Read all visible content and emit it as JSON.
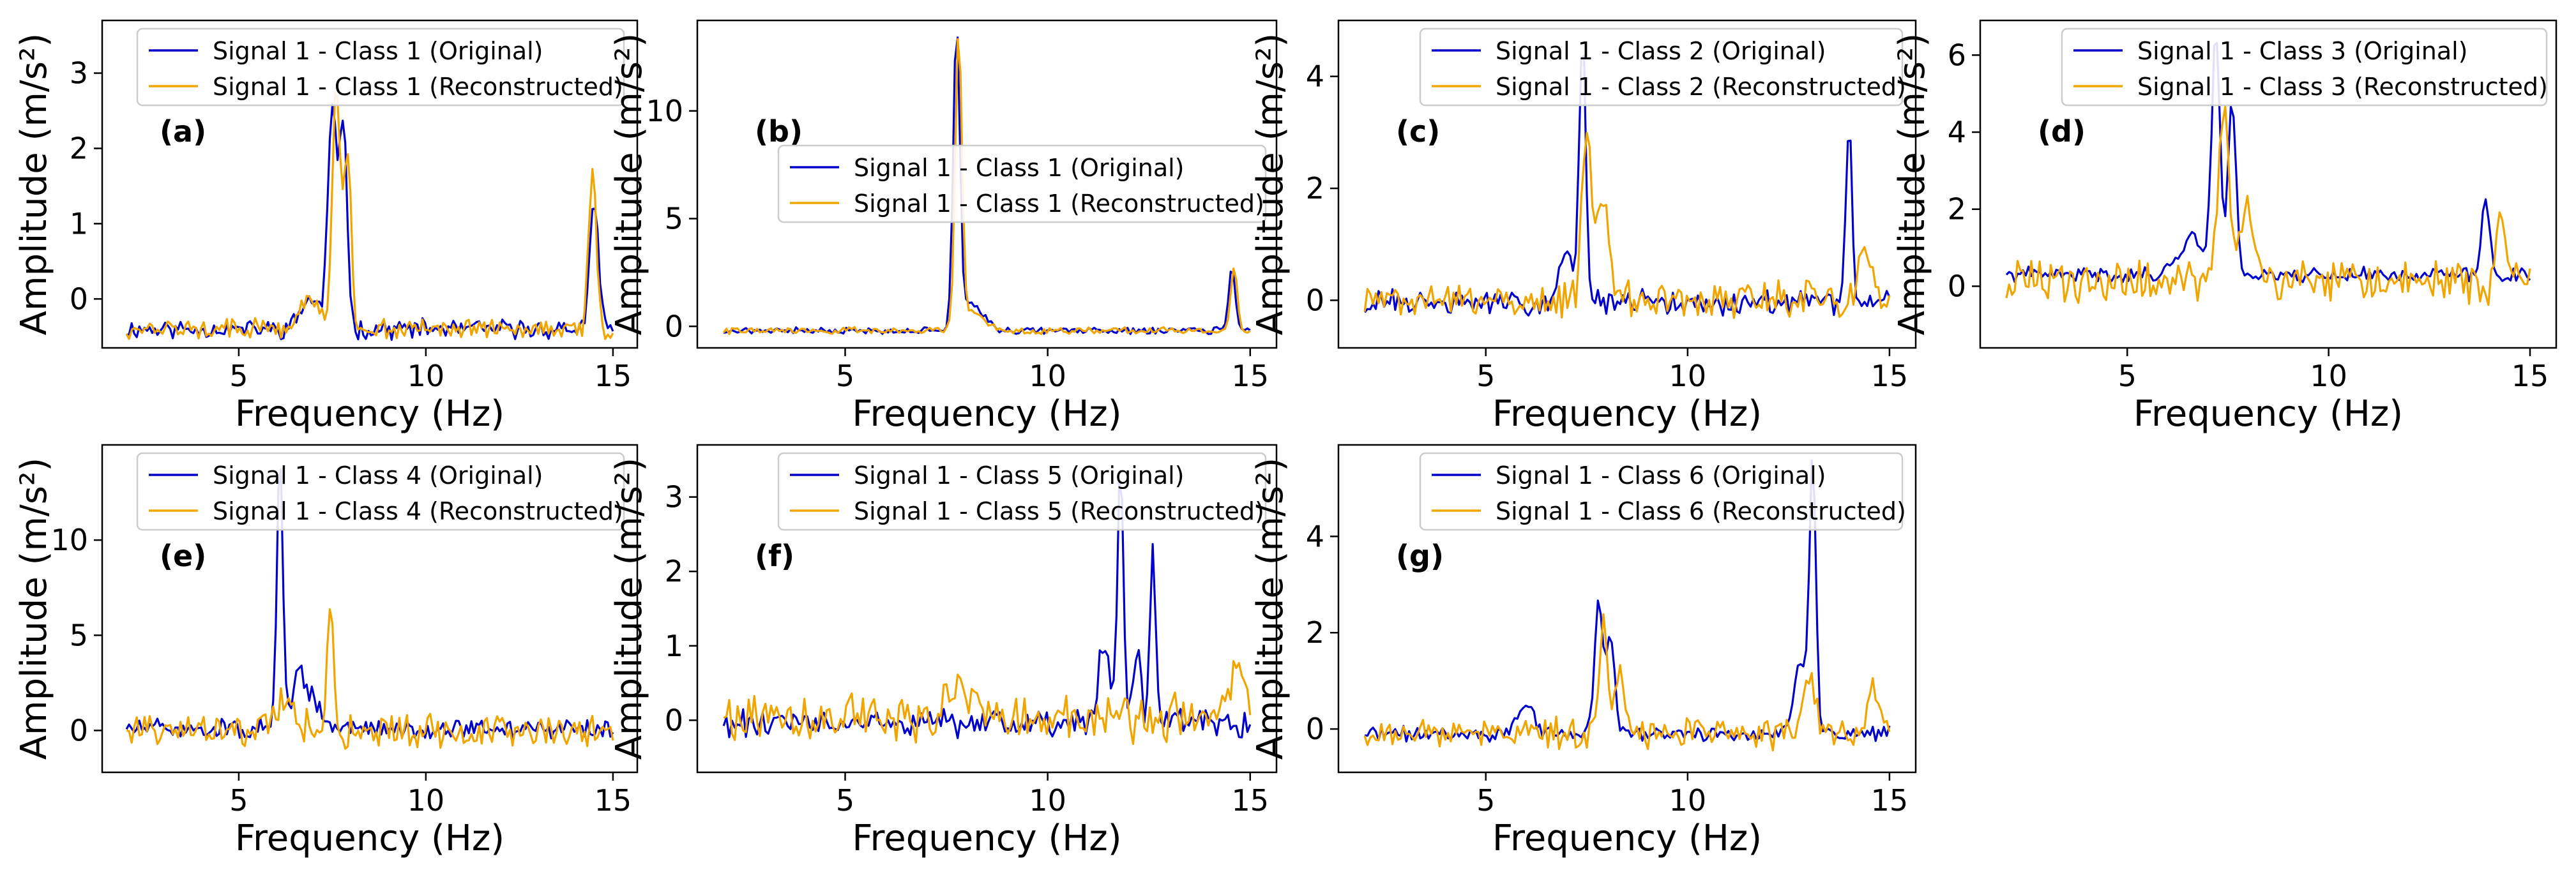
{
  "figure": {
    "colors": {
      "original": "#0000cc",
      "reconstructed": "#f0a500",
      "axis": "#000000",
      "legend_border": "#cccccc"
    },
    "x_domain": [
      2,
      15
    ]
  },
  "chart_data": [
    {
      "type": "line",
      "panel_label": "(a)",
      "xlabel": "Frequency (Hz)",
      "ylabel": "Amplitude (m/s²)",
      "xlim": [
        1.35,
        15.65
      ],
      "ylim": [
        -0.65,
        3.7
      ],
      "xticks": [
        5,
        10,
        15
      ],
      "yticks": [
        0,
        1,
        2,
        3
      ],
      "legend_position": "top-center",
      "series": [
        {
          "name": "Signal 1 - Class 1 (Original)",
          "color": "#0000cc",
          "peaks": [
            [
              7.5,
              2.9,
              0.12
            ],
            [
              7.8,
              2.7,
              0.1
            ],
            [
              14.5,
              1.6,
              0.12
            ],
            [
              6.9,
              0.4,
              0.25
            ]
          ],
          "baseline": -0.4,
          "noise": 0.1,
          "seed": 11
        },
        {
          "name": "Signal 1 - Class 1 (Reconstructed)",
          "color": "#f0a500",
          "peaks": [
            [
              7.6,
              3.3,
              0.1
            ],
            [
              7.9,
              2.4,
              0.1
            ],
            [
              14.45,
              2.1,
              0.1
            ],
            [
              6.9,
              0.4,
              0.25
            ]
          ],
          "baseline": -0.4,
          "noise": 0.1,
          "seed": 12
        }
      ]
    },
    {
      "type": "line",
      "panel_label": "(b)",
      "xlabel": "Frequency (Hz)",
      "ylabel": "Amplitude (m/s²)",
      "xlim": [
        1.35,
        15.65
      ],
      "ylim": [
        -1.0,
        14.2
      ],
      "xticks": [
        5,
        10,
        15
      ],
      "yticks": [
        0,
        5,
        10
      ],
      "legend_position": "center",
      "series": [
        {
          "name": "Signal 1 - Class 1 (Original)",
          "color": "#0000cc",
          "peaks": [
            [
              7.75,
              13.7,
              0.08
            ],
            [
              8.1,
              1.3,
              0.3
            ],
            [
              14.55,
              2.9,
              0.08
            ]
          ],
          "baseline": -0.2,
          "noise": 0.12,
          "seed": 21
        },
        {
          "name": "Signal 1 - Class 1 (Reconstructed)",
          "color": "#f0a500",
          "peaks": [
            [
              7.8,
              13.5,
              0.08
            ],
            [
              8.1,
              1.0,
              0.3
            ],
            [
              14.6,
              3.0,
              0.08
            ]
          ],
          "baseline": -0.2,
          "noise": 0.12,
          "seed": 22
        }
      ]
    },
    {
      "type": "line",
      "panel_label": "(c)",
      "xlabel": "Frequency (Hz)",
      "ylabel": "Amplitude (m/s²)",
      "xlim": [
        1.35,
        15.65
      ],
      "ylim": [
        -0.85,
        5.0
      ],
      "xticks": [
        5,
        10,
        15
      ],
      "yticks": [
        0,
        2,
        4
      ],
      "legend_position": "top-center",
      "series": [
        {
          "name": "Signal 1 - Class 2 (Original)",
          "color": "#0000cc",
          "peaks": [
            [
              7.4,
              4.8,
              0.08
            ],
            [
              7.0,
              0.9,
              0.2
            ],
            [
              14.0,
              3.0,
              0.08
            ]
          ],
          "baseline": -0.05,
          "noise": 0.18,
          "seed": 31
        },
        {
          "name": "Signal 1 - Class 2 (Reconstructed)",
          "color": "#f0a500",
          "peaks": [
            [
              7.5,
              3.0,
              0.12
            ],
            [
              7.9,
              1.8,
              0.15
            ],
            [
              14.4,
              0.9,
              0.15
            ]
          ],
          "baseline": 0.0,
          "noise": 0.25,
          "seed": 32
        }
      ]
    },
    {
      "type": "line",
      "panel_label": "(d)",
      "xlabel": "Frequency (Hz)",
      "ylabel": "Amplitude (m/s²)",
      "xlim": [
        1.35,
        15.65
      ],
      "ylim": [
        -1.6,
        6.9
      ],
      "xticks": [
        5,
        10,
        15
      ],
      "yticks": [
        0,
        2,
        4,
        6
      ],
      "legend_position": "top-right",
      "series": [
        {
          "name": "Signal 1 - Class 3 (Original)",
          "color": "#0000cc",
          "peaks": [
            [
              7.2,
              6.2,
              0.1
            ],
            [
              7.6,
              4.6,
              0.1
            ],
            [
              6.6,
              1.0,
              0.3
            ],
            [
              13.9,
              1.9,
              0.1
            ]
          ],
          "baseline": 0.3,
          "noise": 0.15,
          "seed": 41
        },
        {
          "name": "Signal 1 - Class 3 (Reconstructed)",
          "color": "#f0a500",
          "peaks": [
            [
              7.4,
              4.0,
              0.15
            ],
            [
              8.0,
              2.3,
              0.15
            ],
            [
              14.3,
              1.8,
              0.12
            ]
          ],
          "baseline": 0.1,
          "noise": 0.45,
          "seed": 42
        }
      ]
    },
    {
      "type": "line",
      "panel_label": "(e)",
      "xlabel": "Frequency (Hz)",
      "ylabel": "Amplitude (m/s²)",
      "xlim": [
        1.35,
        15.65
      ],
      "ylim": [
        -2.2,
        15.0
      ],
      "xticks": [
        5,
        10,
        15
      ],
      "yticks": [
        0,
        5,
        10
      ],
      "legend_position": "top-center",
      "series": [
        {
          "name": "Signal 1 - Class 4 (Original)",
          "color": "#0000cc",
          "peaks": [
            [
              6.1,
              14.0,
              0.08
            ],
            [
              6.6,
              3.0,
              0.15
            ],
            [
              7.0,
              1.5,
              0.2
            ]
          ],
          "baseline": 0.1,
          "noise": 0.4,
          "seed": 51
        },
        {
          "name": "Signal 1 - Class 4 (Reconstructed)",
          "color": "#f0a500",
          "peaks": [
            [
              7.45,
              6.2,
              0.1
            ],
            [
              6.2,
              1.5,
              0.3
            ]
          ],
          "baseline": 0.0,
          "noise": 0.7,
          "seed": 52
        }
      ]
    },
    {
      "type": "line",
      "panel_label": "(f)",
      "xlabel": "Frequency (Hz)",
      "ylabel": "Amplitude (m/s²)",
      "xlim": [
        1.35,
        15.65
      ],
      "ylim": [
        -0.7,
        3.7
      ],
      "xticks": [
        5,
        10,
        15
      ],
      "yticks": [
        0,
        1,
        2,
        3
      ],
      "legend_position": "top-right",
      "series": [
        {
          "name": "Signal 1 - Class 5 (Original)",
          "color": "#0000cc",
          "peaks": [
            [
              11.8,
              3.5,
              0.07
            ],
            [
              12.6,
              2.3,
              0.07
            ],
            [
              11.4,
              1.1,
              0.15
            ],
            [
              12.2,
              1.0,
              0.1
            ]
          ],
          "baseline": -0.05,
          "noise": 0.15,
          "seed": 61
        },
        {
          "name": "Signal 1 - Class 5 (Reconstructed)",
          "color": "#f0a500",
          "peaks": [
            [
              7.9,
              0.4,
              0.3
            ],
            [
              14.7,
              0.7,
              0.15
            ]
          ],
          "baseline": 0.05,
          "noise": 0.25,
          "seed": 62
        }
      ]
    },
    {
      "type": "line",
      "panel_label": "(g)",
      "xlabel": "Frequency (Hz)",
      "ylabel": "Amplitude (m/s²)",
      "xlim": [
        1.35,
        15.65
      ],
      "ylim": [
        -0.9,
        5.9
      ],
      "xticks": [
        5,
        10,
        15
      ],
      "yticks": [
        0,
        2,
        4
      ],
      "legend_position": "top-center",
      "series": [
        {
          "name": "Signal 1 - Class 6 (Original)",
          "color": "#0000cc",
          "peaks": [
            [
              7.8,
              2.8,
              0.1
            ],
            [
              8.1,
              2.0,
              0.1
            ],
            [
              13.1,
              5.6,
              0.08
            ],
            [
              12.8,
              1.5,
              0.15
            ],
            [
              6.0,
              0.6,
              0.2
            ]
          ],
          "baseline": -0.1,
          "noise": 0.12,
          "seed": 71
        },
        {
          "name": "Signal 1 - Class 6 (Reconstructed)",
          "color": "#f0a500",
          "peaks": [
            [
              7.9,
              2.2,
              0.1
            ],
            [
              8.3,
              1.2,
              0.15
            ],
            [
              13.0,
              1.2,
              0.15
            ],
            [
              14.6,
              1.1,
              0.12
            ]
          ],
          "baseline": -0.1,
          "noise": 0.25,
          "seed": 72
        }
      ]
    }
  ]
}
